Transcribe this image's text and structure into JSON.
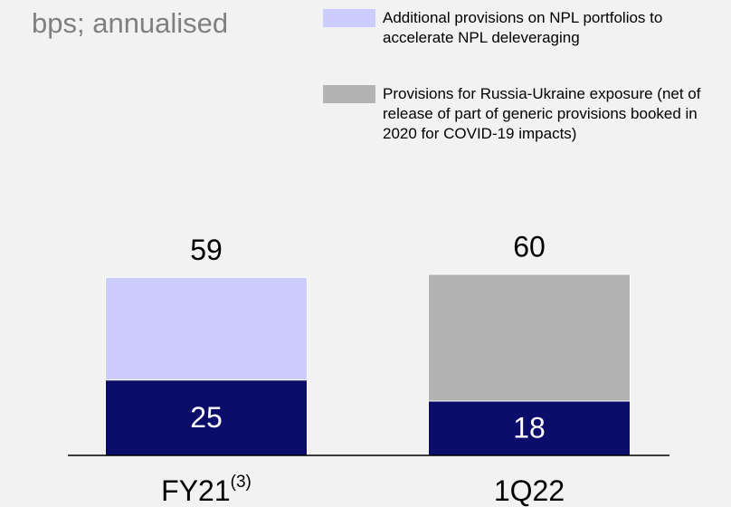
{
  "chart_data": {
    "type": "stacked_bar",
    "title": "bps; annualised",
    "categories": [
      "FY21",
      "1Q22"
    ],
    "category_superscripts": [
      "(3)",
      null
    ],
    "totals": [
      59,
      60
    ],
    "series": [
      {
        "color": "#0c0c6a",
        "values": [
          25,
          18
        ],
        "data_labels": true
      },
      {
        "name": "Additional provisions on NPL portfolios to accelerate NPL deleveraging",
        "color": "#ccccff",
        "values": [
          34,
          null
        ]
      },
      {
        "name": "Provisions for Russia-Ukraine exposure (net of release of part of generic provisions booked in 2020 for COVID-19 impacts)",
        "color": "#b3b3b3",
        "values": [
          null,
          42
        ]
      }
    ]
  }
}
